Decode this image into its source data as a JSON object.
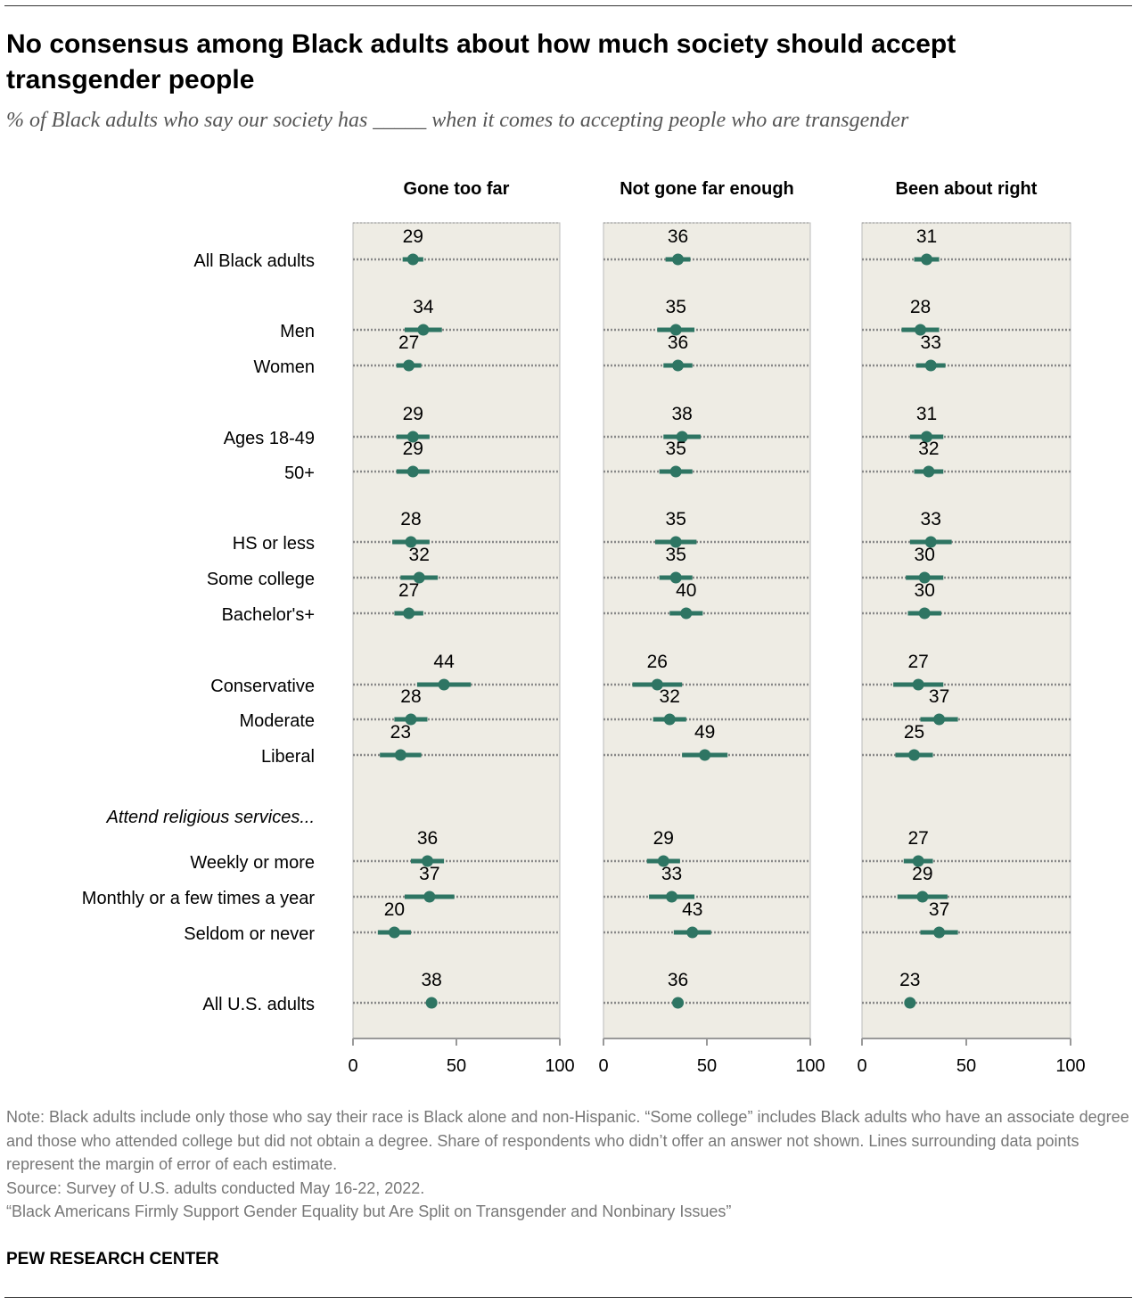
{
  "title": "No consensus among Black adults about how much society should accept transgender people",
  "subtitle": "% of Black adults who say our society has _____ when it comes to accepting people who are transgender",
  "chart_data": {
    "type": "dot-plot with error bars",
    "xlim": [
      0,
      100
    ],
    "xticks": [
      0,
      50,
      100
    ],
    "categories": [
      "All Black adults",
      "Men",
      "Women",
      "Ages 18-49",
      "50+",
      "HS or less",
      "Some college",
      "Bachelor's+",
      "Conservative",
      "Moderate",
      "Liberal",
      "Weekly or more",
      "Monthly or a few times a year",
      "Seldom or never",
      "All U.S. adults"
    ],
    "group_header": "Attend religious services...",
    "series": [
      {
        "name": "Gone too far",
        "values": [
          29,
          34,
          27,
          29,
          29,
          28,
          32,
          27,
          44,
          28,
          23,
          36,
          37,
          20,
          38
        ],
        "margin_of_error": [
          5,
          9,
          6,
          8,
          8,
          9,
          9,
          7,
          13,
          8,
          10,
          8,
          12,
          8,
          1
        ]
      },
      {
        "name": "Not gone far enough",
        "values": [
          36,
          35,
          36,
          38,
          35,
          35,
          35,
          40,
          26,
          32,
          49,
          29,
          33,
          43,
          36
        ],
        "margin_of_error": [
          6,
          9,
          7,
          9,
          8,
          10,
          8,
          8,
          12,
          8,
          11,
          8,
          11,
          9,
          1
        ]
      },
      {
        "name": "Been about right",
        "values": [
          31,
          28,
          33,
          31,
          32,
          33,
          30,
          30,
          27,
          37,
          25,
          27,
          29,
          37,
          23
        ],
        "margin_of_error": [
          6,
          9,
          7,
          8,
          7,
          10,
          9,
          8,
          12,
          9,
          9,
          7,
          12,
          9,
          1
        ]
      }
    ],
    "colors": {
      "dot": "#2e7563",
      "panel": "#eeece4",
      "gridline": "#888888"
    }
  },
  "notes": [
    "Note: Black adults include only those who say their race is Black alone and non-Hispanic. “Some college” includes Black adults who have an associate degree and those who attended college but did not obtain a degree. Share of respondents who didn’t offer an answer not shown. Lines surrounding data points represent the margin of error of each estimate.",
    "Source: Survey of U.S. adults conducted May 16-22, 2022.",
    "“Black Americans Firmly Support Gender Equality but Are Split on Transgender and Nonbinary Issues”"
  ],
  "logo": "PEW RESEARCH CENTER"
}
